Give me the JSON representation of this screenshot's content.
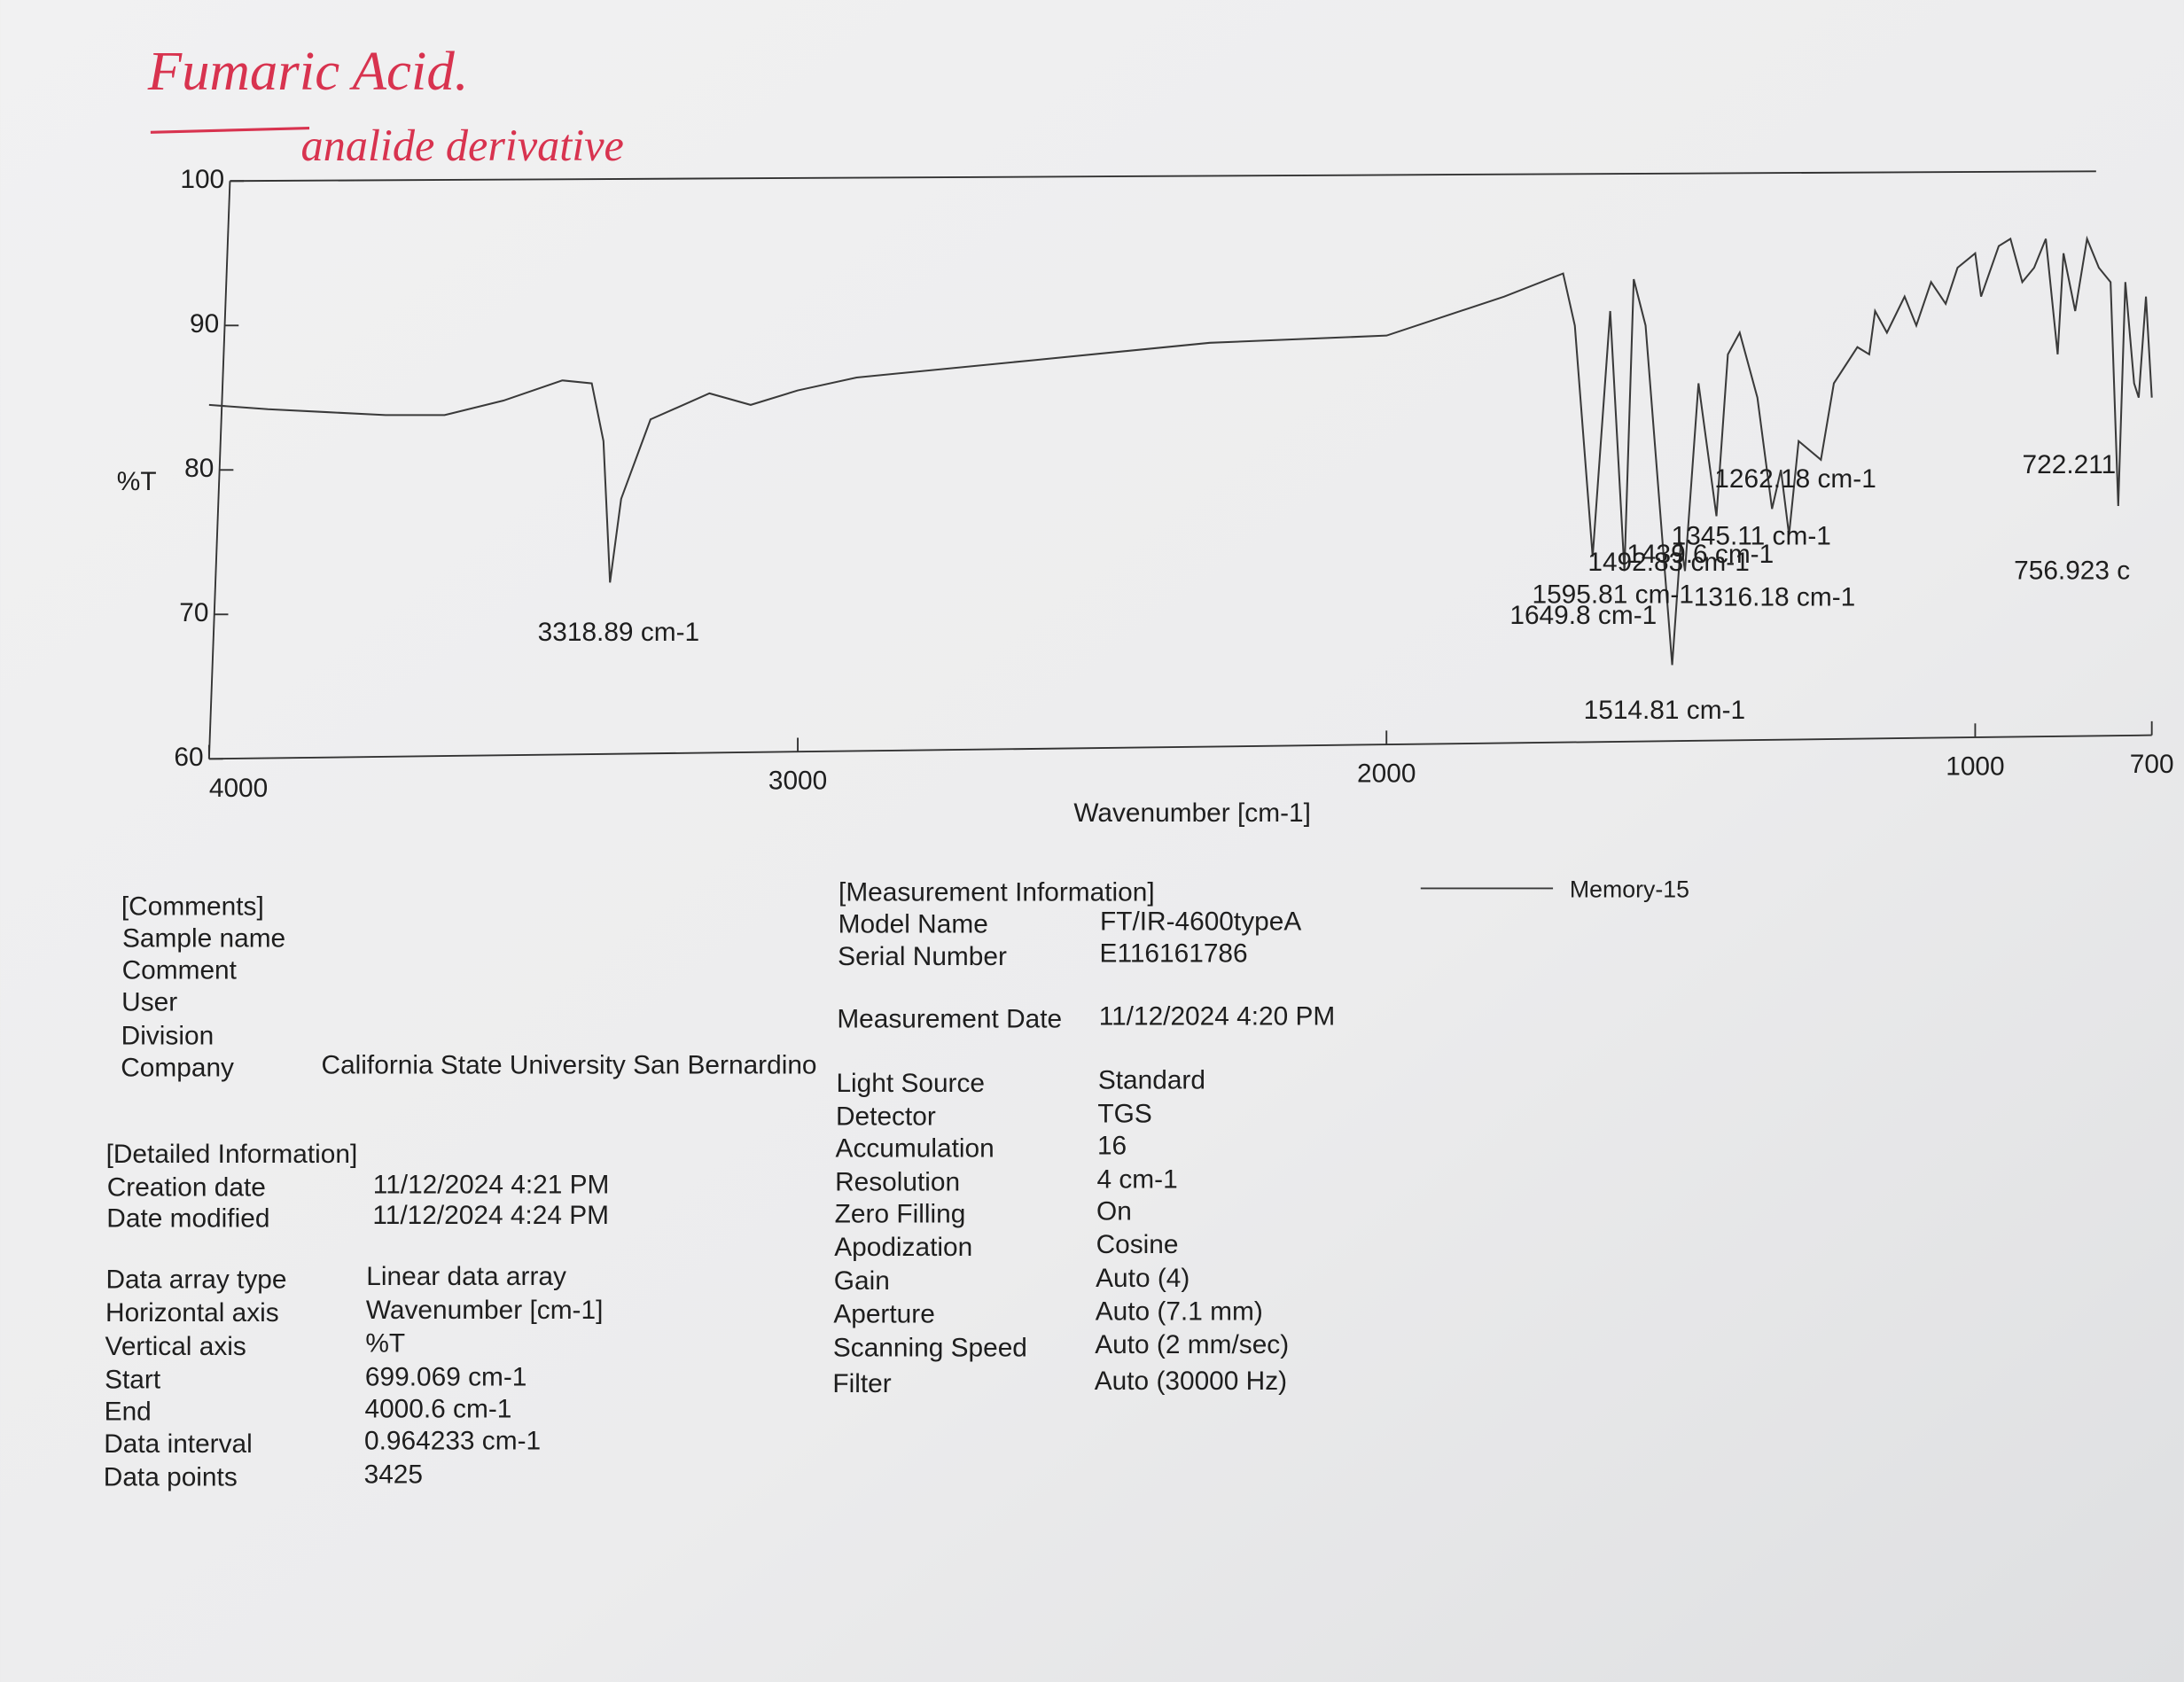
{
  "handwritten": {
    "title": "Fumaric Acid.",
    "subtitle": "analide derivative"
  },
  "chart_data": {
    "type": "line",
    "xlabel": "Wavenumber [cm-1]",
    "ylabel": "%T",
    "xlim": [
      4000,
      700
    ],
    "ylim": [
      60,
      100
    ],
    "xticks": [
      4000,
      3000,
      2000,
      1000,
      700
    ],
    "yticks": [
      60,
      70,
      80,
      90,
      100
    ],
    "grid": false,
    "legend": "top-right",
    "series": [
      {
        "name": "Memory-15",
        "color": "#3a3a3a",
        "x": [
          4000,
          3900,
          3800,
          3700,
          3600,
          3500,
          3400,
          3350,
          3330,
          3318.89,
          3300,
          3250,
          3150,
          3080,
          3000,
          2900,
          2600,
          2300,
          2000,
          1800,
          1700,
          1680,
          1649.8,
          1620,
          1595.81,
          1580,
          1560,
          1514.81,
          1500,
          1492.83,
          1470,
          1439.6,
          1420,
          1400,
          1370,
          1345.11,
          1330,
          1316.18,
          1300,
          1262.18,
          1240,
          1200,
          1180,
          1170,
          1150,
          1120,
          1100,
          1075,
          1050,
          1030,
          1000,
          990,
          960,
          940,
          920,
          900,
          880,
          860,
          850,
          830,
          810,
          790,
          770,
          756.923,
          745,
          730,
          722.211,
          710,
          700
        ],
        "values": [
          84.5,
          84.2,
          84.0,
          83.8,
          83.8,
          84.8,
          86.2,
          86.0,
          82.0,
          72.2,
          78.0,
          83.5,
          85.3,
          84.5,
          85.5,
          86.4,
          87.6,
          88.8,
          89.3,
          92.0,
          93.6,
          90.0,
          74.0,
          91.0,
          73.0,
          93.2,
          90.0,
          66.5,
          75.0,
          73.0,
          86.0,
          76.8,
          88.0,
          89.5,
          85.0,
          77.3,
          80.0,
          75.5,
          82.0,
          80.7,
          86.0,
          88.5,
          88.0,
          91.0,
          89.5,
          92.0,
          90.0,
          93.0,
          91.5,
          94.0,
          95.0,
          92.0,
          95.5,
          96.0,
          93.0,
          94.0,
          96.0,
          88.0,
          95.0,
          91.0,
          96.0,
          94.0,
          93.0,
          77.5,
          93.0,
          86.0,
          85.0,
          92.0,
          85.0
        ]
      }
    ],
    "annotations": [
      "3318.89 cm-1",
      "1649.8 cm-1",
      "1595.81 cm-1",
      "1514.81 cm-1",
      "1492.83 cm-1",
      "1439.6 cm-1",
      "1345.11 cm-1",
      "1316.18 cm-1",
      "1262.18 cm-1",
      "756.923 c",
      "722.211"
    ]
  },
  "comments": {
    "heading": "[Comments]",
    "rows": [
      {
        "label": "Sample name"
      },
      {
        "label": "Comment"
      },
      {
        "label": "User"
      },
      {
        "label": "Division"
      },
      {
        "label": "Company",
        "value": "California State University San Bernardino"
      }
    ]
  },
  "detailed": {
    "heading": "[Detailed Information]",
    "rows": [
      {
        "label": "Creation date",
        "value": "11/12/2024 4:21 PM"
      },
      {
        "label": "Date modified",
        "value": "11/12/2024 4:24 PM"
      },
      {
        "label": "Data array type",
        "value": "Linear data array"
      },
      {
        "label": "Horizontal axis",
        "value": "Wavenumber [cm-1]"
      },
      {
        "label": "Vertical axis",
        "value": "%T"
      },
      {
        "label": "Start",
        "value": "699.069 cm-1"
      },
      {
        "label": "End",
        "value": "4000.6 cm-1"
      },
      {
        "label": "Data interval",
        "value": "0.964233 cm-1"
      },
      {
        "label": "Data points",
        "value": "3425"
      }
    ]
  },
  "measurement": {
    "heading": "[Measurement Information]",
    "rows": [
      {
        "label": "Model Name",
        "value": "FT/IR-4600typeA"
      },
      {
        "label": "Serial Number",
        "value": "E116161786"
      },
      {
        "label": "Measurement Date",
        "value": "11/12/2024 4:20 PM"
      },
      {
        "label": "Light Source",
        "value": "Standard"
      },
      {
        "label": "Detector",
        "value": "TGS"
      },
      {
        "label": "Accumulation",
        "value": "16"
      },
      {
        "label": "Resolution",
        "value": "4 cm-1"
      },
      {
        "label": "Zero Filling",
        "value": "On"
      },
      {
        "label": "Apodization",
        "value": "Cosine"
      },
      {
        "label": "Gain",
        "value": "Auto (4)"
      },
      {
        "label": "Aperture",
        "value": "Auto (7.1 mm)"
      },
      {
        "label": "Scanning Speed",
        "value": "Auto (2 mm/sec)"
      },
      {
        "label": "Filter",
        "value": "Auto (30000 Hz)"
      }
    ]
  }
}
